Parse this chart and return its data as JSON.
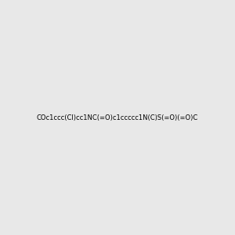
{
  "smiles": "COc1ccc(Cl)cc1NC(=O)c1ccccc1N(C)S(=O)(=O)C",
  "image_size": 300,
  "background_color": "#e8e8e8",
  "title": ""
}
